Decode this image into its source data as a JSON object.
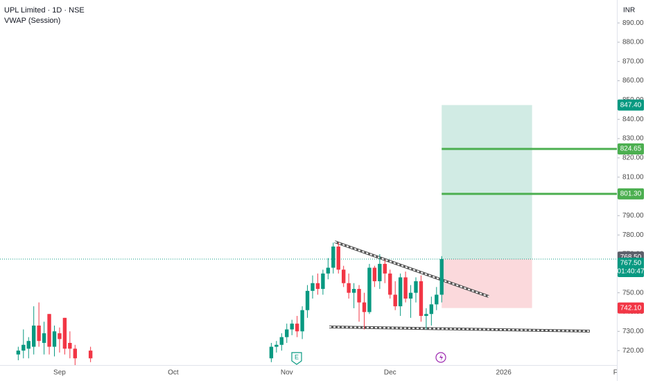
{
  "header": {
    "title": "UPL Limited · 1D · NSE",
    "indicator": "VWAP (Session)",
    "currency": "INR"
  },
  "chart_data": {
    "type": "candlestick",
    "categories": [
      null,
      null,
      null,
      null,
      null,
      null,
      null,
      null,
      null,
      null,
      null,
      "Sep",
      null,
      null,
      null,
      null,
      null,
      null,
      null,
      null,
      null,
      null,
      null,
      null,
      null,
      null,
      null,
      null,
      null,
      null,
      null,
      null,
      null,
      "Oct",
      null,
      null,
      null,
      null,
      null,
      null,
      null,
      null,
      null,
      null,
      null,
      null,
      null,
      null,
      null,
      null,
      null,
      null,
      null,
      null,
      null,
      "Nov",
      null,
      null,
      null,
      null,
      null,
      null,
      null,
      null,
      null,
      null,
      null,
      null,
      null,
      null,
      null,
      null,
      null,
      null,
      null,
      "Dec",
      null,
      null,
      null,
      null,
      null,
      null,
      null,
      null,
      null,
      null,
      null,
      null,
      null,
      null,
      null,
      null,
      null,
      null,
      null,
      null,
      null,
      "2026",
      null,
      null,
      null,
      null,
      null,
      null,
      null,
      null,
      null,
      null,
      null,
      null,
      null,
      null,
      null,
      null,
      null,
      null,
      null,
      null,
      null,
      "Fe"
    ],
    "series": {
      "open": [
        null,
        null,
        null,
        718,
        720,
        721,
        722,
        733,
        724,
        739,
        722,
        729,
        737,
        724,
        721,
        null,
        null,
        720,
        null,
        null,
        null,
        null,
        null,
        null,
        null,
        null,
        null,
        null,
        null,
        null,
        null,
        null,
        null,
        null,
        null,
        null,
        null,
        null,
        null,
        null,
        null,
        null,
        null,
        null,
        null,
        null,
        null,
        null,
        null,
        null,
        null,
        null,
        716,
        722,
        723,
        727,
        731,
        734,
        730,
        741,
        751,
        755,
        752,
        760,
        763,
        774,
        762,
        755,
        750,
        752,
        745,
        740,
        763,
        756,
        765,
        760,
        749,
        743,
        758,
        747,
        750,
        756,
        738,
        739,
        744,
        749
      ],
      "high": [
        null,
        null,
        null,
        722,
        731,
        727,
        743,
        745,
        735,
        739,
        733,
        732,
        737,
        730,
        723,
        null,
        null,
        722,
        null,
        null,
        null,
        null,
        null,
        null,
        null,
        null,
        null,
        null,
        null,
        null,
        null,
        null,
        null,
        null,
        null,
        null,
        null,
        null,
        null,
        null,
        null,
        null,
        null,
        null,
        null,
        null,
        null,
        null,
        null,
        null,
        null,
        null,
        724,
        725,
        729,
        734,
        736,
        738,
        743,
        754,
        759,
        760,
        762,
        768,
        776,
        776,
        764,
        760,
        755,
        754,
        750,
        765,
        764,
        770,
        767,
        762,
        756,
        760,
        761,
        754,
        758,
        759,
        742,
        748,
        753,
        769
      ],
      "low": [
        null,
        null,
        null,
        715,
        716,
        716,
        718,
        722,
        718,
        718,
        717,
        719,
        718,
        716,
        712,
        null,
        null,
        714,
        null,
        null,
        null,
        null,
        null,
        null,
        null,
        null,
        null,
        null,
        null,
        null,
        null,
        null,
        null,
        null,
        null,
        null,
        null,
        null,
        null,
        null,
        null,
        null,
        null,
        null,
        null,
        null,
        null,
        null,
        null,
        null,
        null,
        null,
        714,
        719,
        720,
        724,
        728,
        727,
        726,
        737,
        747,
        749,
        749,
        757,
        760,
        760,
        753,
        747,
        742,
        735,
        731,
        739,
        753,
        752,
        755,
        747,
        741,
        738,
        745,
        737,
        745,
        735,
        731,
        733,
        741,
        745
      ],
      "close": [
        null,
        null,
        null,
        720,
        723,
        725,
        733,
        725,
        729,
        722,
        730,
        726,
        721,
        721,
        716,
        null,
        null,
        716,
        null,
        null,
        null,
        null,
        null,
        null,
        null,
        null,
        null,
        null,
        null,
        null,
        null,
        null,
        null,
        null,
        null,
        null,
        null,
        null,
        null,
        null,
        null,
        null,
        null,
        null,
        null,
        null,
        null,
        null,
        null,
        null,
        null,
        null,
        722,
        723,
        727,
        731,
        734,
        730,
        741,
        751,
        755,
        752,
        760,
        763,
        774,
        762,
        755,
        750,
        752,
        745,
        740,
        763,
        756,
        765,
        760,
        749,
        743,
        758,
        747,
        750,
        756,
        738,
        739,
        744,
        749,
        767.5
      ]
    },
    "up_color": "#089981",
    "down_color": "#f23645",
    "ylim": [
      712.5,
      901.9
    ],
    "yticks": [
      {
        "value": 720,
        "label": "720.00"
      },
      {
        "value": 730,
        "label": "730.00"
      },
      {
        "value": 740,
        "label": "740.00"
      },
      {
        "value": 750,
        "label": "750.00"
      },
      {
        "value": 760,
        "label": "760.00"
      },
      {
        "value": 770,
        "label": "770.00"
      },
      {
        "value": 780,
        "label": "780.00"
      },
      {
        "value": 790,
        "label": "790.00"
      },
      {
        "value": 800,
        "label": "800.00"
      },
      {
        "value": 810,
        "label": "810.00"
      },
      {
        "value": 820,
        "label": "820.00"
      },
      {
        "value": 830,
        "label": "830.00"
      },
      {
        "value": 840,
        "label": "840.00"
      },
      {
        "value": 850,
        "label": "850.00"
      },
      {
        "value": 860,
        "label": "860.00"
      },
      {
        "value": 870,
        "label": "870.00"
      },
      {
        "value": 880,
        "label": "880.00"
      },
      {
        "value": 890,
        "label": "890.00"
      }
    ],
    "price_lines": [
      {
        "value": 824.65,
        "label": "824.65",
        "color": "#4caf50"
      },
      {
        "value": 801.3,
        "label": "801.30",
        "color": "#4caf50"
      }
    ],
    "position": {
      "target": {
        "value": 847.4,
        "label": "847.40"
      },
      "entry": {
        "value": 767.5,
        "label": "767.50"
      },
      "stop": {
        "value": 742.1,
        "label": "742.10"
      },
      "profit_color": "#d1ebe4",
      "loss_color": "#fbd9dc"
    },
    "marker_high": {
      "value": 768.5,
      "label": "768.50"
    },
    "countdown": "01:40:47"
  }
}
